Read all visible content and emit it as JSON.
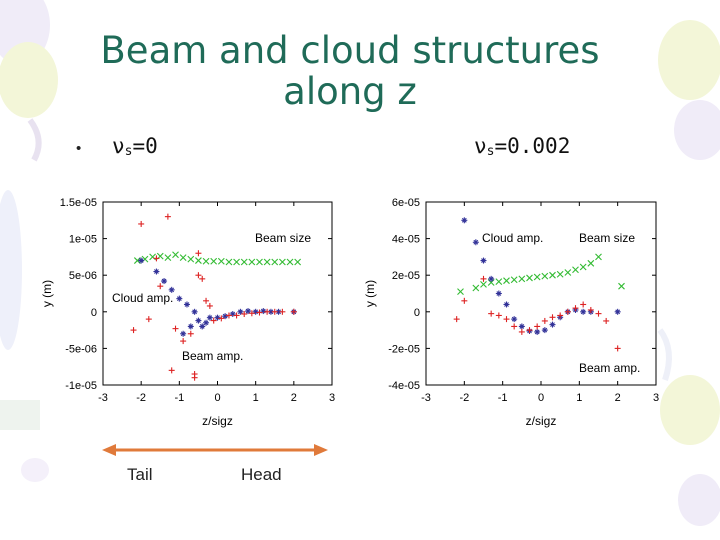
{
  "slide": {
    "title_line1": "Beam and cloud structures",
    "title_line2": "along z",
    "bullet": "•",
    "left_label": "ν",
    "left_sub": "s",
    "left_value": "=0",
    "right_label": "ν",
    "right_sub": "s",
    "right_value": "=0.002",
    "tail": "Tail",
    "head": "Head",
    "accent_color": "#1f6b58",
    "arrow_color": "#e07a3a"
  },
  "chart_data": [
    {
      "type": "scatter",
      "xlabel": "z/sigz",
      "ylabel": "y (m)",
      "xlim": [
        -3,
        3
      ],
      "ylim": [
        -1e-05,
        1.5e-05
      ],
      "xticks": [
        "-3",
        "-2",
        "-1",
        "0",
        "1",
        "2",
        "3"
      ],
      "yticks": [
        "1.5e-05",
        "1e-05",
        "5e-06",
        "0",
        "-5e-06",
        "-1e-05"
      ],
      "annotations": [
        "Beam size",
        "Cloud amp.",
        "Beam amp."
      ],
      "series": [
        {
          "color": "#33bb33",
          "marker": "x",
          "points": [
            [
              -2.1,
              7e-06
            ],
            [
              -1.9,
              7.2e-06
            ],
            [
              -1.7,
              7.5e-06
            ],
            [
              -1.5,
              7.6e-06
            ],
            [
              -1.3,
              7.4e-06
            ],
            [
              -1.1,
              7.8e-06
            ],
            [
              -0.9,
              7.4e-06
            ],
            [
              -0.7,
              7.2e-06
            ],
            [
              -0.5,
              7e-06
            ],
            [
              -0.3,
              6.9e-06
            ],
            [
              -0.1,
              6.9e-06
            ],
            [
              0.1,
              6.9e-06
            ],
            [
              0.3,
              6.8e-06
            ],
            [
              0.5,
              6.8e-06
            ],
            [
              0.7,
              6.8e-06
            ],
            [
              0.9,
              6.8e-06
            ],
            [
              1.1,
              6.8e-06
            ],
            [
              1.3,
              6.8e-06
            ],
            [
              1.5,
              6.8e-06
            ],
            [
              1.7,
              6.8e-06
            ],
            [
              1.9,
              6.8e-06
            ],
            [
              2.1,
              6.8e-06
            ]
          ]
        },
        {
          "color": "#333399",
          "marker": "*",
          "points": [
            [
              -2.0,
              7e-06
            ],
            [
              -1.6,
              5.5e-06
            ],
            [
              -1.4,
              4.2e-06
            ],
            [
              -1.2,
              3e-06
            ],
            [
              -1.0,
              1.8e-06
            ],
            [
              -0.8,
              1e-06
            ],
            [
              -0.6,
              0.0
            ],
            [
              -0.5,
              -1.2e-06
            ],
            [
              -0.4,
              -2e-06
            ],
            [
              -0.3,
              -1.5e-06
            ],
            [
              -0.2,
              -8e-07
            ],
            [
              0.0,
              -8e-07
            ],
            [
              0.2,
              -6e-07
            ],
            [
              0.4,
              -3e-07
            ],
            [
              0.6,
              0.0
            ],
            [
              0.8,
              1e-07
            ],
            [
              1.0,
              0.0
            ],
            [
              1.2,
              1e-07
            ],
            [
              1.4,
              0.0
            ],
            [
              1.6,
              0.0
            ],
            [
              2.0,
              0.0
            ],
            [
              -0.9,
              -3e-06
            ],
            [
              -0.7,
              -2e-06
            ]
          ]
        },
        {
          "color": "#dd2222",
          "marker": "+",
          "points": [
            [
              -2.2,
              -2.5e-06
            ],
            [
              -2.0,
              1.2e-05
            ],
            [
              -1.8,
              -1e-06
            ],
            [
              -1.6,
              7.3e-06
            ],
            [
              -1.5,
              3.5e-06
            ],
            [
              -1.3,
              1.3e-05
            ],
            [
              -1.1,
              -2.3e-06
            ],
            [
              -0.9,
              -4e-06
            ],
            [
              -0.7,
              -3e-06
            ],
            [
              -0.5,
              5e-06
            ],
            [
              -0.4,
              4.5e-06
            ],
            [
              -0.3,
              1.5e-06
            ],
            [
              -0.2,
              8e-07
            ],
            [
              -0.1,
              -1.2e-06
            ],
            [
              0.1,
              -9e-07
            ],
            [
              0.3,
              -5e-07
            ],
            [
              0.5,
              -5e-07
            ],
            [
              0.7,
              -3e-07
            ],
            [
              0.9,
              -2e-07
            ],
            [
              1.1,
              -1e-07
            ],
            [
              1.3,
              0.0
            ],
            [
              1.5,
              0.0
            ],
            [
              1.7,
              0.0
            ],
            [
              2.0,
              0.0
            ],
            [
              -1.2,
              -8e-06
            ],
            [
              -0.6,
              -8.5e-06
            ],
            [
              -0.6,
              -9e-06
            ],
            [
              -0.5,
              8e-06
            ]
          ]
        }
      ]
    },
    {
      "type": "scatter",
      "xlabel": "z/sigz",
      "ylabel": "y (m)",
      "xlim": [
        -3,
        3
      ],
      "ylim": [
        -4e-05,
        6e-05
      ],
      "xticks": [
        "-3",
        "-2",
        "-1",
        "0",
        "1",
        "2",
        "3"
      ],
      "yticks": [
        "6e-05",
        "4e-05",
        "2e-05",
        "0",
        "-2e-05",
        "-4e-05"
      ],
      "annotations": [
        "Cloud amp.",
        "Beam size",
        "Beam amp."
      ],
      "series": [
        {
          "color": "#33bb33",
          "marker": "x",
          "points": [
            [
              -2.1,
              1.1e-05
            ],
            [
              -1.7,
              1.3e-05
            ],
            [
              -1.5,
              1.5e-05
            ],
            [
              -1.3,
              1.6e-05
            ],
            [
              -1.1,
              1.65e-05
            ],
            [
              -0.9,
              1.7e-05
            ],
            [
              -0.7,
              1.75e-05
            ],
            [
              -0.5,
              1.8e-05
            ],
            [
              -0.3,
              1.85e-05
            ],
            [
              -0.1,
              1.9e-05
            ],
            [
              0.1,
              1.95e-05
            ],
            [
              0.3,
              2e-05
            ],
            [
              0.5,
              2.05e-05
            ],
            [
              0.7,
              2.15e-05
            ],
            [
              0.9,
              2.3e-05
            ],
            [
              1.1,
              2.45e-05
            ],
            [
              1.3,
              2.65e-05
            ],
            [
              1.5,
              3e-05
            ],
            [
              2.1,
              1.4e-05
            ]
          ]
        },
        {
          "color": "#333399",
          "marker": "*",
          "points": [
            [
              -2.0,
              5e-05
            ],
            [
              -1.7,
              3.8e-05
            ],
            [
              -1.5,
              2.8e-05
            ],
            [
              -1.3,
              1.8e-05
            ],
            [
              -1.1,
              1e-05
            ],
            [
              -0.9,
              4e-06
            ],
            [
              -0.7,
              -4e-06
            ],
            [
              -0.5,
              -8e-06
            ],
            [
              -0.3,
              -1.05e-05
            ],
            [
              -0.1,
              -1.1e-05
            ],
            [
              0.1,
              -1e-05
            ],
            [
              0.3,
              -7e-06
            ],
            [
              0.5,
              -3e-06
            ],
            [
              0.7,
              0.0
            ],
            [
              0.9,
              1e-06
            ],
            [
              1.1,
              0.0
            ],
            [
              1.3,
              0.0
            ],
            [
              2.0,
              0.0
            ]
          ]
        },
        {
          "color": "#dd2222",
          "marker": "+",
          "points": [
            [
              -2.2,
              -4e-06
            ],
            [
              -2.0,
              6e-06
            ],
            [
              -1.5,
              1.8e-05
            ],
            [
              -1.3,
              -1e-06
            ],
            [
              -1.1,
              -2e-06
            ],
            [
              -0.9,
              -4e-06
            ],
            [
              -0.7,
              -8e-06
            ],
            [
              -0.5,
              -1.1e-05
            ],
            [
              -0.3,
              -1e-05
            ],
            [
              -0.1,
              -8e-06
            ],
            [
              0.1,
              -5e-06
            ],
            [
              0.3,
              -3e-06
            ],
            [
              0.5,
              -2e-06
            ],
            [
              0.7,
              0.0
            ],
            [
              0.9,
              2e-06
            ],
            [
              1.1,
              4e-06
            ],
            [
              1.3,
              1e-06
            ],
            [
              1.5,
              -1e-06
            ],
            [
              1.7,
              -5e-06
            ],
            [
              2.0,
              -2e-05
            ]
          ]
        }
      ]
    }
  ]
}
